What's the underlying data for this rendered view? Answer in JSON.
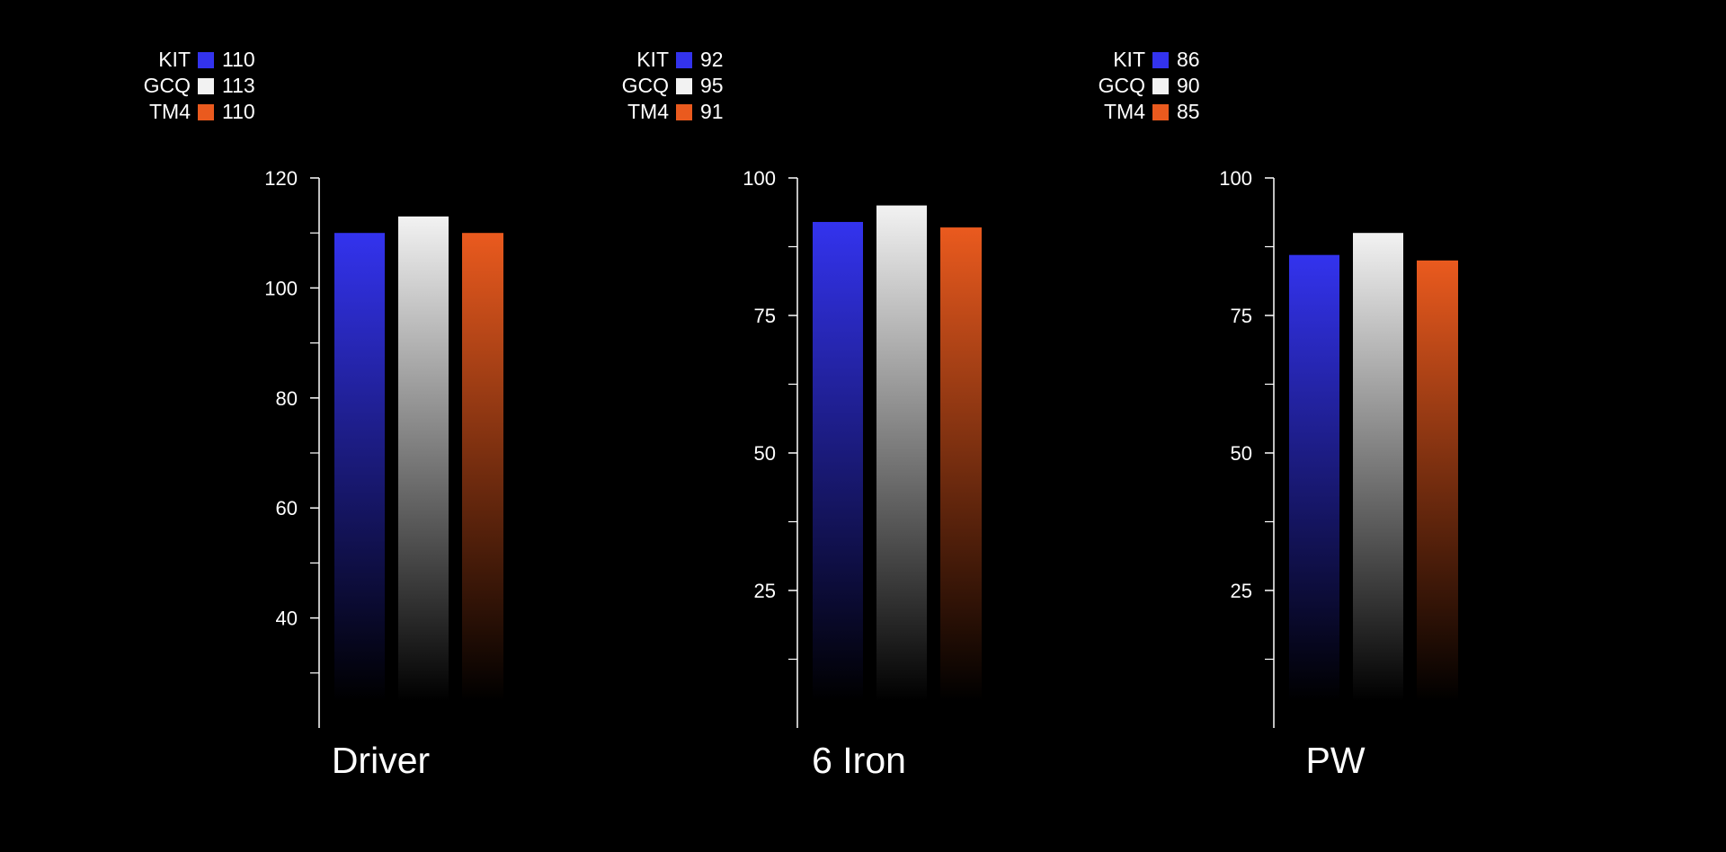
{
  "colors": {
    "KIT": "#3333ee",
    "GCQ": "#f2f2f2",
    "TM4": "#ea5a1e",
    "background": "#000000",
    "axis": "#ffffff"
  },
  "chart_data": [
    {
      "type": "bar",
      "category": "Driver",
      "series": [
        {
          "name": "KIT",
          "value": 110
        },
        {
          "name": "GCQ",
          "value": 113
        },
        {
          "name": "TM4",
          "value": 110
        }
      ],
      "ylim": [
        20,
        120
      ],
      "yticks": [
        "120",
        "100",
        "80",
        "60",
        "40"
      ],
      "ytick_values": [
        120,
        100,
        80,
        60,
        40
      ],
      "minor_ticks": [
        110,
        90,
        70,
        50,
        30
      ],
      "gradient_fill": true
    },
    {
      "type": "bar",
      "category": "6 Iron",
      "series": [
        {
          "name": "KIT",
          "value": 92
        },
        {
          "name": "GCQ",
          "value": 95
        },
        {
          "name": "TM4",
          "value": 91
        }
      ],
      "ylim": [
        0,
        100
      ],
      "yticks": [
        "100",
        "75",
        "50",
        "25"
      ],
      "ytick_values": [
        100,
        75,
        50,
        25
      ],
      "minor_ticks": [
        87.5,
        62.5,
        37.5,
        12.5
      ],
      "gradient_fill": true
    },
    {
      "type": "bar",
      "category": "PW",
      "series": [
        {
          "name": "KIT",
          "value": 86
        },
        {
          "name": "GCQ",
          "value": 90
        },
        {
          "name": "TM4",
          "value": 85
        }
      ],
      "ylim": [
        0,
        100
      ],
      "yticks": [
        "100",
        "75",
        "50",
        "25"
      ],
      "ytick_values": [
        100,
        75,
        50,
        25
      ],
      "minor_ticks": [
        87.5,
        62.5,
        37.5,
        12.5
      ],
      "gradient_fill": true
    }
  ]
}
